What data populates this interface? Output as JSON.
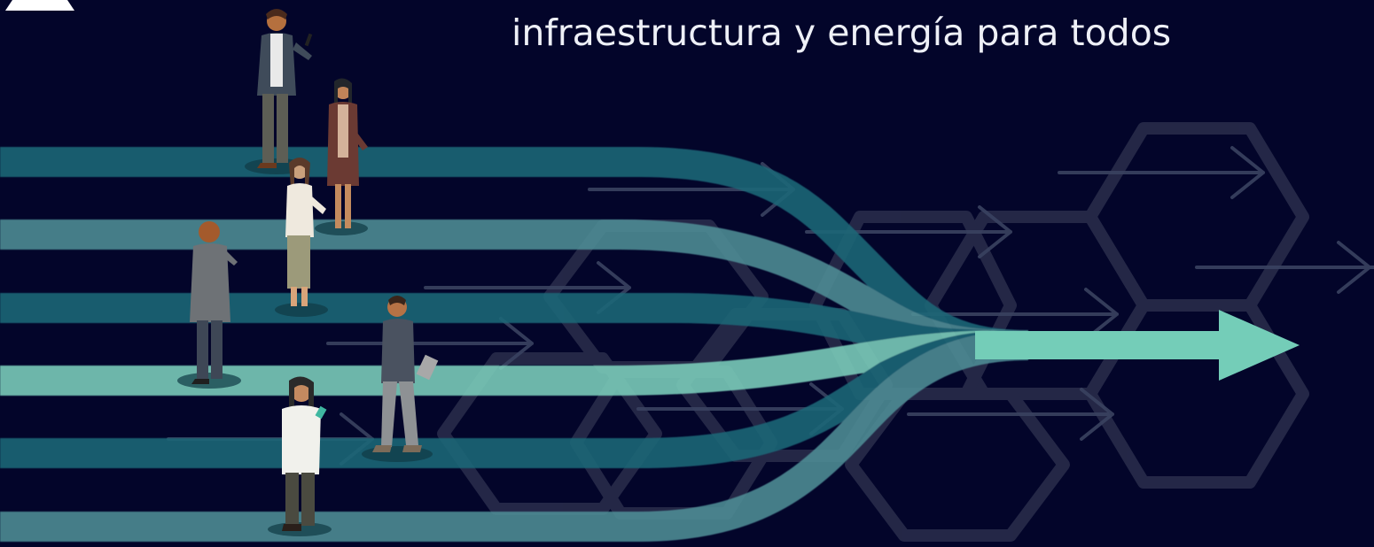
{
  "hero": {
    "headline": "infraestructura y energía para todos",
    "theme": "converging-paths-illustration"
  },
  "colors": {
    "background": "#03052a",
    "lane_dark": "#1e6878",
    "lane_mid": "#4f8e96",
    "lane_light": "#7ccfbc",
    "arrow": "#74cdb8",
    "hexagon_stroke": "#2a2e4c",
    "heading_text": "#eef0f7"
  },
  "icons": [
    "arrow-head-icon",
    "hexagon-pattern",
    "person-figure"
  ]
}
